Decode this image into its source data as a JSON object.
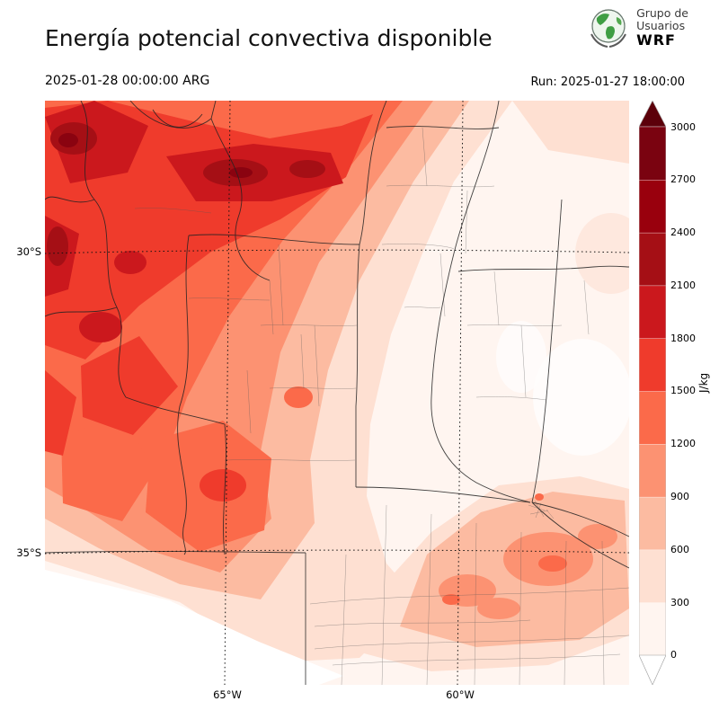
{
  "header": {
    "title": "Energía potencial convectiva disponible",
    "logo": {
      "org_line1": "Grupo de",
      "org_line2": "Usuarios",
      "org_line3": "WRF"
    }
  },
  "subheader": {
    "valid_time": "2025-01-28 00:00:00 ARG",
    "run_label": "Run: 2025-01-27 18:00:00"
  },
  "map": {
    "lat_labels": [
      "30°S",
      "35°S"
    ],
    "lon_labels": [
      "65°W",
      "60°W"
    ]
  },
  "colorbar": {
    "units": "J/kg",
    "ticks_top_to_bottom": [
      "3000",
      "2700",
      "2400",
      "2100",
      "1800",
      "1500",
      "1200",
      "900",
      "600",
      "300",
      "0"
    ],
    "segment_colors_bottom_to_top": [
      "#fff5f0",
      "#fee0d2",
      "#fcbba1",
      "#fc9272",
      "#fb6a4a",
      "#ef3b2c",
      "#cb181d",
      "#a50f15",
      "#99000d",
      "#7a0310"
    ],
    "over_color": "#5c000a",
    "under_color": "#ffffff"
  }
}
